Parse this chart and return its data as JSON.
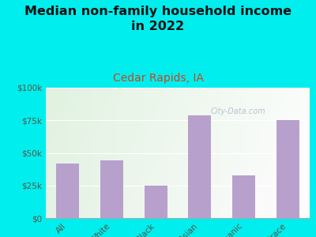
{
  "title": "Median non-family household income\nin 2022",
  "subtitle": "Cedar Rapids, IA",
  "categories": [
    "All",
    "White",
    "Black",
    "Asian",
    "Hispanic",
    "Multirace"
  ],
  "values": [
    42000,
    44000,
    25000,
    79000,
    33000,
    75000
  ],
  "bar_color": "#b8a0cc",
  "title_fontsize": 11.5,
  "subtitle_fontsize": 10,
  "subtitle_color": "#cc4422",
  "title_color": "#111111",
  "bg_outer": "#00eeee",
  "bg_chart_topleft": "#d8eece",
  "bg_chart_topright": "#f0f8ee",
  "bg_chart_bottom": "#f0f8e8",
  "ylabel_ticks": [
    "$0",
    "$25k",
    "$50k",
    "$75k",
    "$100k"
  ],
  "ytick_values": [
    0,
    25000,
    50000,
    75000,
    100000
  ],
  "ylim": [
    0,
    100000
  ],
  "watermark": "City-Data.com",
  "watermark_color": "#aabbcc",
  "tick_color": "#555544",
  "grid_color": "#ddddcc"
}
